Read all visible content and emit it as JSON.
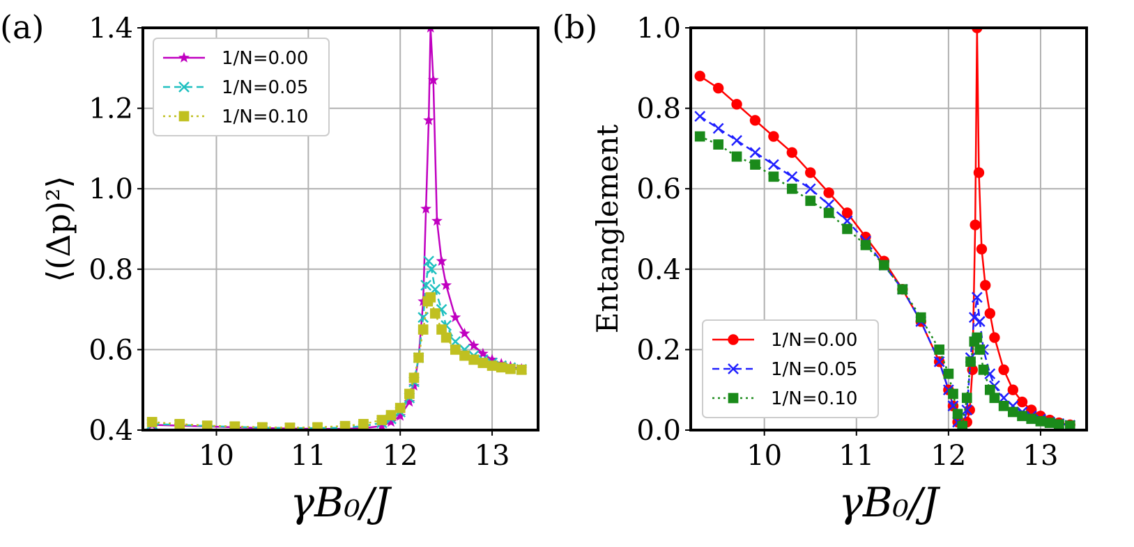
{
  "chart_data": [
    {
      "type": "line",
      "panel_label": "(a)",
      "xlabel": "γB₀/J",
      "ylabel": "⟨(Δp)²⟩",
      "xlim": [
        9.2,
        13.5
      ],
      "ylim": [
        0.4,
        1.4
      ],
      "xticks": [
        10,
        11,
        12,
        13
      ],
      "yticks": [
        0.4,
        0.6,
        0.8,
        1.0,
        1.2,
        1.4
      ],
      "xtick_labels": [
        "10",
        "11",
        "12",
        "13"
      ],
      "ytick_labels": [
        "0.4",
        "0.6",
        "0.8",
        "1.0",
        "1.2",
        "1.4"
      ],
      "grid": true,
      "legend_position": "top-left",
      "series": [
        {
          "name": "1/N=0.00",
          "color": "#c000c0",
          "marker": "star",
          "linestyle": "solid",
          "x": [
            9.3,
            9.6,
            9.9,
            10.2,
            10.5,
            10.8,
            11.1,
            11.4,
            11.6,
            11.8,
            11.9,
            12.0,
            12.1,
            12.15,
            12.2,
            12.25,
            12.28,
            12.31,
            12.33,
            12.36,
            12.4,
            12.45,
            12.5,
            12.6,
            12.7,
            12.8,
            12.9,
            13.0,
            13.1,
            13.2,
            13.32
          ],
          "y": [
            0.413,
            0.411,
            0.409,
            0.407,
            0.405,
            0.404,
            0.403,
            0.403,
            0.405,
            0.41,
            0.42,
            0.435,
            0.47,
            0.51,
            0.58,
            0.72,
            0.95,
            1.17,
            1.4,
            1.27,
            0.92,
            0.82,
            0.76,
            0.68,
            0.64,
            0.61,
            0.59,
            0.575,
            0.565,
            0.558,
            0.552
          ]
        },
        {
          "name": "1/N=0.05",
          "color": "#20c0c0",
          "marker": "x",
          "linestyle": "dashed",
          "x": [
            9.3,
            9.6,
            9.9,
            10.2,
            10.5,
            10.8,
            11.1,
            11.4,
            11.6,
            11.8,
            11.9,
            12.0,
            12.1,
            12.15,
            12.2,
            12.25,
            12.28,
            12.31,
            12.34,
            12.38,
            12.45,
            12.5,
            12.6,
            12.7,
            12.8,
            12.9,
            13.0,
            13.1,
            13.2,
            13.32
          ],
          "y": [
            0.415,
            0.413,
            0.41,
            0.408,
            0.406,
            0.405,
            0.405,
            0.406,
            0.41,
            0.418,
            0.428,
            0.445,
            0.48,
            0.52,
            0.58,
            0.68,
            0.76,
            0.82,
            0.8,
            0.75,
            0.7,
            0.66,
            0.62,
            0.6,
            0.585,
            0.575,
            0.567,
            0.56,
            0.555,
            0.551
          ]
        },
        {
          "name": "1/N=0.10",
          "color": "#c0c020",
          "marker": "square",
          "linestyle": "dotted",
          "x": [
            9.3,
            9.6,
            9.9,
            10.2,
            10.5,
            10.8,
            11.1,
            11.4,
            11.6,
            11.8,
            11.9,
            12.0,
            12.1,
            12.15,
            12.2,
            12.25,
            12.3,
            12.33,
            12.38,
            12.45,
            12.5,
            12.6,
            12.7,
            12.8,
            12.9,
            13.0,
            13.1,
            13.2,
            13.32
          ],
          "y": [
            0.42,
            0.415,
            0.411,
            0.409,
            0.407,
            0.406,
            0.407,
            0.41,
            0.415,
            0.425,
            0.437,
            0.455,
            0.49,
            0.53,
            0.58,
            0.65,
            0.72,
            0.73,
            0.69,
            0.65,
            0.63,
            0.6,
            0.585,
            0.575,
            0.567,
            0.56,
            0.556,
            0.552,
            0.55
          ]
        }
      ]
    },
    {
      "type": "line",
      "panel_label": "(b)",
      "xlabel": "γB₀/J",
      "ylabel": "Entanglement",
      "xlim": [
        9.2,
        13.5
      ],
      "ylim": [
        0.0,
        1.0
      ],
      "xticks": [
        10,
        11,
        12,
        13
      ],
      "yticks": [
        0.0,
        0.2,
        0.4,
        0.6,
        0.8,
        1.0
      ],
      "xtick_labels": [
        "10",
        "11",
        "12",
        "13"
      ],
      "ytick_labels": [
        "0.0",
        "0.2",
        "0.4",
        "0.6",
        "0.8",
        "1.0"
      ],
      "grid": true,
      "legend_position": "bottom-left",
      "series": [
        {
          "name": "1/N=0.00",
          "color": "#ff0000",
          "marker": "circle",
          "linestyle": "solid",
          "x": [
            9.3,
            9.5,
            9.7,
            9.9,
            10.1,
            10.3,
            10.5,
            10.7,
            10.9,
            11.1,
            11.3,
            11.5,
            11.7,
            11.9,
            12.0,
            12.05,
            12.1,
            12.15,
            12.2,
            12.23,
            12.26,
            12.29,
            12.31,
            12.33,
            12.36,
            12.4,
            12.45,
            12.5,
            12.6,
            12.7,
            12.8,
            12.9,
            13.0,
            13.1,
            13.2,
            13.32
          ],
          "y": [
            0.88,
            0.85,
            0.81,
            0.77,
            0.73,
            0.69,
            0.64,
            0.59,
            0.54,
            0.48,
            0.42,
            0.35,
            0.27,
            0.17,
            0.1,
            0.06,
            0.02,
            0.0,
            0.02,
            0.05,
            0.15,
            0.51,
            1.0,
            0.64,
            0.45,
            0.36,
            0.29,
            0.23,
            0.15,
            0.1,
            0.07,
            0.05,
            0.035,
            0.025,
            0.018,
            0.013
          ]
        },
        {
          "name": "1/N=0.05",
          "color": "#2020ff",
          "marker": "x",
          "linestyle": "dashed",
          "x": [
            9.3,
            9.5,
            9.7,
            9.9,
            10.1,
            10.3,
            10.5,
            10.7,
            10.9,
            11.1,
            11.3,
            11.5,
            11.7,
            11.9,
            12.0,
            12.05,
            12.1,
            12.15,
            12.2,
            12.24,
            12.28,
            12.31,
            12.34,
            12.38,
            12.45,
            12.5,
            12.6,
            12.7,
            12.8,
            12.9,
            13.0,
            13.1,
            13.2,
            13.32
          ],
          "y": [
            0.78,
            0.75,
            0.72,
            0.69,
            0.66,
            0.63,
            0.6,
            0.56,
            0.52,
            0.47,
            0.41,
            0.35,
            0.27,
            0.17,
            0.1,
            0.06,
            0.02,
            0.0,
            0.05,
            0.18,
            0.28,
            0.33,
            0.27,
            0.2,
            0.14,
            0.11,
            0.08,
            0.06,
            0.045,
            0.035,
            0.027,
            0.02,
            0.016,
            0.012
          ]
        },
        {
          "name": "1/N=0.10",
          "color": "#1a8a1a",
          "marker": "square",
          "linestyle": "dotted",
          "x": [
            9.3,
            9.5,
            9.7,
            9.9,
            10.1,
            10.3,
            10.5,
            10.7,
            10.9,
            11.1,
            11.3,
            11.5,
            11.7,
            11.9,
            12.0,
            12.05,
            12.1,
            12.15,
            12.2,
            12.24,
            12.28,
            12.31,
            12.34,
            12.38,
            12.45,
            12.5,
            12.6,
            12.7,
            12.8,
            12.9,
            13.0,
            13.1,
            13.2,
            13.32
          ],
          "y": [
            0.73,
            0.71,
            0.68,
            0.66,
            0.63,
            0.6,
            0.57,
            0.54,
            0.5,
            0.46,
            0.41,
            0.35,
            0.28,
            0.2,
            0.14,
            0.09,
            0.04,
            0.01,
            0.08,
            0.17,
            0.22,
            0.23,
            0.2,
            0.15,
            0.1,
            0.08,
            0.06,
            0.045,
            0.035,
            0.028,
            0.022,
            0.018,
            0.014,
            0.011
          ]
        }
      ]
    }
  ]
}
